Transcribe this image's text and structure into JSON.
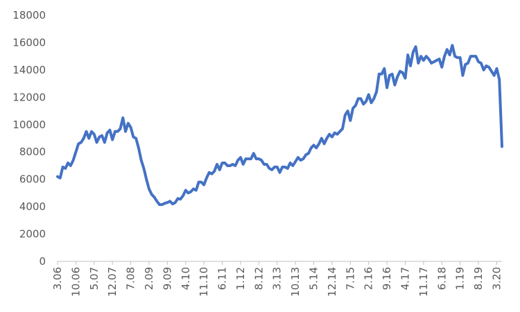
{
  "chart_data": {
    "type": "line",
    "title": "",
    "xlabel": "",
    "ylabel": "",
    "ylim": [
      0,
      18000
    ],
    "y_ticks": [
      0,
      2000,
      4000,
      6000,
      8000,
      10000,
      12000,
      14000,
      16000,
      18000
    ],
    "grid": false,
    "legend": "none",
    "x_tick_labels": [
      "3.06",
      "10.06",
      "5.07",
      "12.07",
      "7.08",
      "2.09",
      "9.09",
      "4.10",
      "11.10",
      "6.11",
      "1.12",
      "8.12",
      "3.13",
      "10.13",
      "5.14",
      "12.14",
      "7.15",
      "2.16",
      "9.16",
      "4.17",
      "11.17",
      "6.18",
      "1.19",
      "8.19",
      "3.20"
    ],
    "x_tick_month_index": [
      0,
      7,
      14,
      21,
      28,
      35,
      42,
      49,
      56,
      63,
      70,
      77,
      84,
      91,
      98,
      105,
      112,
      119,
      126,
      133,
      140,
      147,
      154,
      161,
      168
    ],
    "series": [
      {
        "color": "#4472c4",
        "points": [
          [
            0,
            6200
          ],
          [
            1,
            6100
          ],
          [
            2,
            6900
          ],
          [
            3,
            6800
          ],
          [
            4,
            7200
          ],
          [
            5,
            7000
          ],
          [
            6,
            7400
          ],
          [
            7,
            8000
          ],
          [
            8,
            8600
          ],
          [
            9,
            8700
          ],
          [
            10,
            9000
          ],
          [
            11,
            9500
          ],
          [
            12,
            9000
          ],
          [
            13,
            9500
          ],
          [
            14,
            9300
          ],
          [
            15,
            8700
          ],
          [
            16,
            9100
          ],
          [
            17,
            9200
          ],
          [
            18,
            8700
          ],
          [
            19,
            9400
          ],
          [
            20,
            9600
          ],
          [
            21,
            8900
          ],
          [
            22,
            9500
          ],
          [
            23,
            9500
          ],
          [
            24,
            9700
          ],
          [
            25,
            10500
          ],
          [
            26,
            9500
          ],
          [
            27,
            10100
          ],
          [
            28,
            9800
          ],
          [
            29,
            9100
          ],
          [
            30,
            9000
          ],
          [
            31,
            8300
          ],
          [
            32,
            7400
          ],
          [
            33,
            6800
          ],
          [
            34,
            6000
          ],
          [
            35,
            5300
          ],
          [
            36,
            4900
          ],
          [
            37,
            4700
          ],
          [
            38,
            4400
          ],
          [
            39,
            4150
          ],
          [
            40,
            4150
          ],
          [
            41,
            4250
          ],
          [
            42,
            4300
          ],
          [
            43,
            4400
          ],
          [
            44,
            4200
          ],
          [
            45,
            4300
          ],
          [
            46,
            4600
          ],
          [
            47,
            4550
          ],
          [
            48,
            4800
          ],
          [
            49,
            5200
          ],
          [
            50,
            5000
          ],
          [
            51,
            5100
          ],
          [
            52,
            5300
          ],
          [
            53,
            5200
          ],
          [
            54,
            5800
          ],
          [
            55,
            5800
          ],
          [
            56,
            5600
          ],
          [
            57,
            6100
          ],
          [
            58,
            6500
          ],
          [
            59,
            6400
          ],
          [
            60,
            6600
          ],
          [
            61,
            7100
          ],
          [
            62,
            6700
          ],
          [
            63,
            7200
          ],
          [
            64,
            7200
          ],
          [
            65,
            7000
          ],
          [
            66,
            7000
          ],
          [
            67,
            7100
          ],
          [
            68,
            7000
          ],
          [
            69,
            7400
          ],
          [
            70,
            7600
          ],
          [
            71,
            7100
          ],
          [
            72,
            7500
          ],
          [
            73,
            7500
          ],
          [
            74,
            7500
          ],
          [
            75,
            7900
          ],
          [
            76,
            7500
          ],
          [
            77,
            7500
          ],
          [
            78,
            7400
          ],
          [
            79,
            7100
          ],
          [
            80,
            7100
          ],
          [
            81,
            6800
          ],
          [
            82,
            6700
          ],
          [
            83,
            6900
          ],
          [
            84,
            6900
          ],
          [
            85,
            6500
          ],
          [
            86,
            6900
          ],
          [
            87,
            6900
          ],
          [
            88,
            6800
          ],
          [
            89,
            7200
          ],
          [
            90,
            7000
          ],
          [
            91,
            7300
          ],
          [
            92,
            7600
          ],
          [
            93,
            7400
          ],
          [
            94,
            7500
          ],
          [
            95,
            7800
          ],
          [
            96,
            7900
          ],
          [
            97,
            8300
          ],
          [
            98,
            8500
          ],
          [
            99,
            8300
          ],
          [
            100,
            8600
          ],
          [
            101,
            9000
          ],
          [
            102,
            8600
          ],
          [
            103,
            9000
          ],
          [
            104,
            9300
          ],
          [
            105,
            9100
          ],
          [
            106,
            9400
          ],
          [
            107,
            9300
          ],
          [
            108,
            9500
          ],
          [
            109,
            9700
          ],
          [
            110,
            10700
          ],
          [
            111,
            11000
          ],
          [
            112,
            10300
          ],
          [
            113,
            11200
          ],
          [
            114,
            11400
          ],
          [
            115,
            11900
          ],
          [
            116,
            11900
          ],
          [
            117,
            11500
          ],
          [
            118,
            11700
          ],
          [
            119,
            12200
          ],
          [
            120,
            11600
          ],
          [
            121,
            11900
          ],
          [
            122,
            12400
          ],
          [
            123,
            13700
          ],
          [
            124,
            13700
          ],
          [
            125,
            14100
          ],
          [
            126,
            12700
          ],
          [
            127,
            13600
          ],
          [
            128,
            13700
          ],
          [
            129,
            12900
          ],
          [
            130,
            13500
          ],
          [
            131,
            13900
          ],
          [
            132,
            13800
          ],
          [
            133,
            13400
          ],
          [
            134,
            15100
          ],
          [
            135,
            14300
          ],
          [
            136,
            15300
          ],
          [
            137,
            15700
          ],
          [
            138,
            14500
          ],
          [
            139,
            15000
          ],
          [
            140,
            14700
          ],
          [
            141,
            15000
          ],
          [
            142,
            14800
          ],
          [
            143,
            14500
          ],
          [
            144,
            14600
          ],
          [
            145,
            14700
          ],
          [
            146,
            14800
          ],
          [
            147,
            14200
          ],
          [
            148,
            15000
          ],
          [
            149,
            15500
          ],
          [
            150,
            15100
          ],
          [
            151,
            15800
          ],
          [
            152,
            15000
          ],
          [
            153,
            14900
          ],
          [
            154,
            14900
          ],
          [
            155,
            13600
          ],
          [
            156,
            14400
          ],
          [
            157,
            14500
          ],
          [
            158,
            15000
          ],
          [
            159,
            15000
          ],
          [
            160,
            15000
          ],
          [
            161,
            14600
          ],
          [
            162,
            14500
          ],
          [
            163,
            14000
          ],
          [
            164,
            14300
          ],
          [
            165,
            14200
          ],
          [
            166,
            13900
          ],
          [
            167,
            13600
          ],
          [
            168,
            14100
          ],
          [
            169,
            13300
          ],
          [
            170,
            8400
          ]
        ]
      }
    ]
  }
}
